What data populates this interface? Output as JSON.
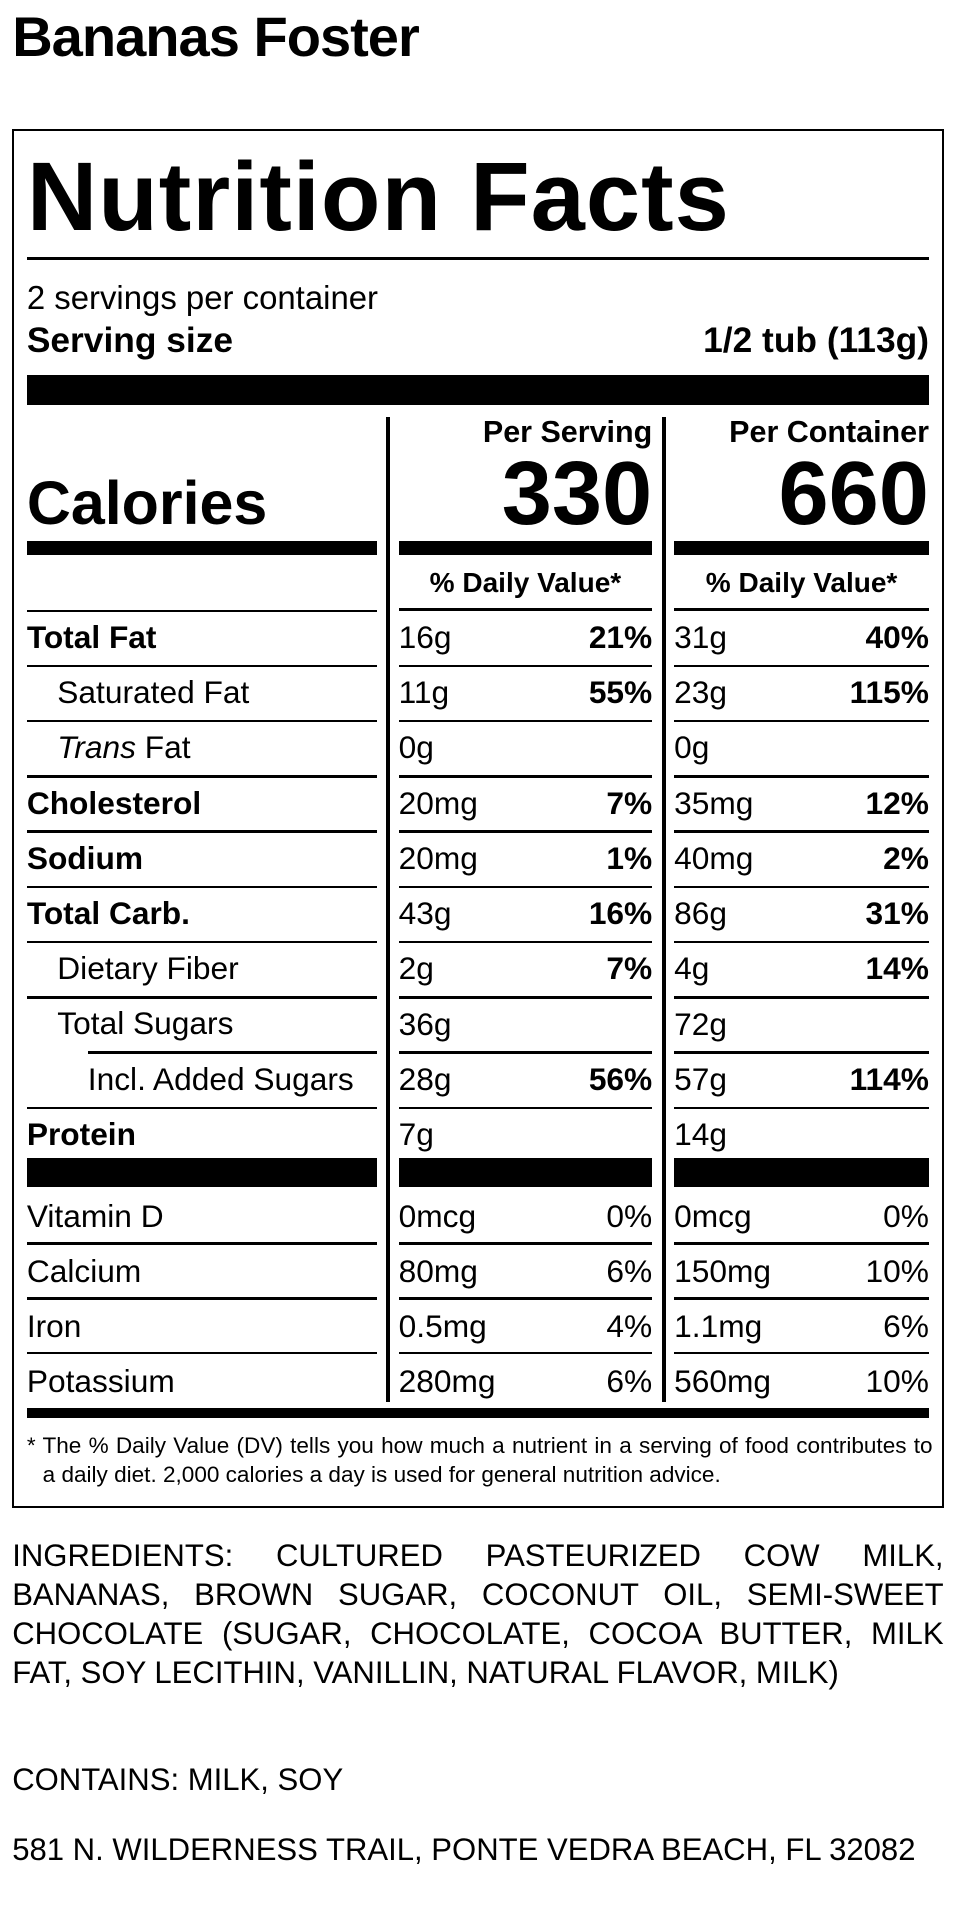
{
  "title": "Bananas Foster",
  "label": {
    "heading": "Nutrition Facts",
    "servings": "2 servings per container",
    "serving_size_label": "Serving size",
    "serving_size": "1/2 tub (113g)",
    "calories_label": "Calories",
    "columns": [
      {
        "header": "Per Serving",
        "calories": 330,
        "dv_header": "% Daily Value*"
      },
      {
        "header": "Per Container",
        "calories": 660,
        "dv_header": "% Daily Value*"
      }
    ],
    "nutrients": [
      {
        "name_parts": [
          {
            "text": "Total Fat"
          }
        ],
        "bold": true,
        "indent": 0,
        "values": [
          {
            "amount": "16g",
            "dv": "21%"
          },
          {
            "amount": "31g",
            "dv": "40%"
          }
        ]
      },
      {
        "name_parts": [
          {
            "text": "Saturated Fat"
          }
        ],
        "bold": false,
        "indent": 1,
        "values": [
          {
            "amount": "11g",
            "dv": "55%"
          },
          {
            "amount": "23g",
            "dv": "115%"
          }
        ]
      },
      {
        "name_parts": [
          {
            "text": "Trans",
            "italic": true
          },
          {
            "text": "Fat"
          }
        ],
        "bold": false,
        "indent": 1,
        "values": [
          {
            "amount": "0g"
          },
          {
            "amount": "0g"
          }
        ]
      },
      {
        "name_parts": [
          {
            "text": "Cholesterol"
          }
        ],
        "bold": true,
        "indent": 0,
        "values": [
          {
            "amount": "20mg",
            "dv": "7%"
          },
          {
            "amount": "35mg",
            "dv": "12%"
          }
        ]
      },
      {
        "name_parts": [
          {
            "text": "Sodium"
          }
        ],
        "bold": true,
        "indent": 0,
        "values": [
          {
            "amount": "20mg",
            "dv": "1%"
          },
          {
            "amount": "40mg",
            "dv": "2%"
          }
        ]
      },
      {
        "name_parts": [
          {
            "text": "Total Carb."
          }
        ],
        "bold": true,
        "indent": 0,
        "values": [
          {
            "amount": "43g",
            "dv": "16%"
          },
          {
            "amount": "86g",
            "dv": "31%"
          }
        ]
      },
      {
        "name_parts": [
          {
            "text": "Dietary Fiber"
          }
        ],
        "bold": false,
        "indent": 1,
        "values": [
          {
            "amount": "2g",
            "dv": "7%"
          },
          {
            "amount": "4g",
            "dv": "14%"
          }
        ]
      },
      {
        "name_parts": [
          {
            "text": "Total Sugars"
          }
        ],
        "bold": false,
        "indent": 1,
        "values": [
          {
            "amount": "36g"
          },
          {
            "amount": "72g"
          }
        ]
      },
      {
        "name_parts": [
          {
            "text": "Incl. Added Sugars"
          }
        ],
        "bold": false,
        "indent": 2,
        "values": [
          {
            "amount": "28g",
            "dv": "56%"
          },
          {
            "amount": "57g",
            "dv": "114%"
          }
        ]
      },
      {
        "name_parts": [
          {
            "text": "Protein"
          }
        ],
        "bold": true,
        "indent": 0,
        "values": [
          {
            "amount": "7g"
          },
          {
            "amount": "14g"
          }
        ]
      }
    ],
    "vitamins": [
      {
        "name": "Vitamin D",
        "values": [
          {
            "amount": "0mcg",
            "dv": "0%"
          },
          {
            "amount": "0mcg",
            "dv": "0%"
          }
        ]
      },
      {
        "name": "Calcium",
        "values": [
          {
            "amount": "80mg",
            "dv": "6%"
          },
          {
            "amount": "150mg",
            "dv": "10%"
          }
        ]
      },
      {
        "name": "Iron",
        "values": [
          {
            "amount": "0.5mg",
            "dv": "4%"
          },
          {
            "amount": "1.1mg",
            "dv": "6%"
          }
        ]
      },
      {
        "name": "Potassium",
        "values": [
          {
            "amount": "280mg",
            "dv": "6%"
          },
          {
            "amount": "560mg",
            "dv": "10%"
          }
        ]
      }
    ],
    "footnote": "* The % Daily Value (DV) tells you how much a nutrient in a serving of food contributes to a daily diet. 2,000 calories a day is used for general nutrition advice."
  },
  "ingredients": "INGREDIENTS: CULTURED PASTEURIZED COW MILK, BANANAS, BROWN SUGAR, COCONUT OIL, SEMI-SWEET CHOCOLATE (SUGAR, CHOCOLATE, COCOA BUTTER, MILK FAT, SOY LECITHIN, VANILLIN, NATURAL FLAVOR, MILK)",
  "contains": "CONTAINS: MILK, SOY",
  "address": "581 N. WILDERNESS TRAIL, PONTE VEDRA BEACH, FL 32082"
}
